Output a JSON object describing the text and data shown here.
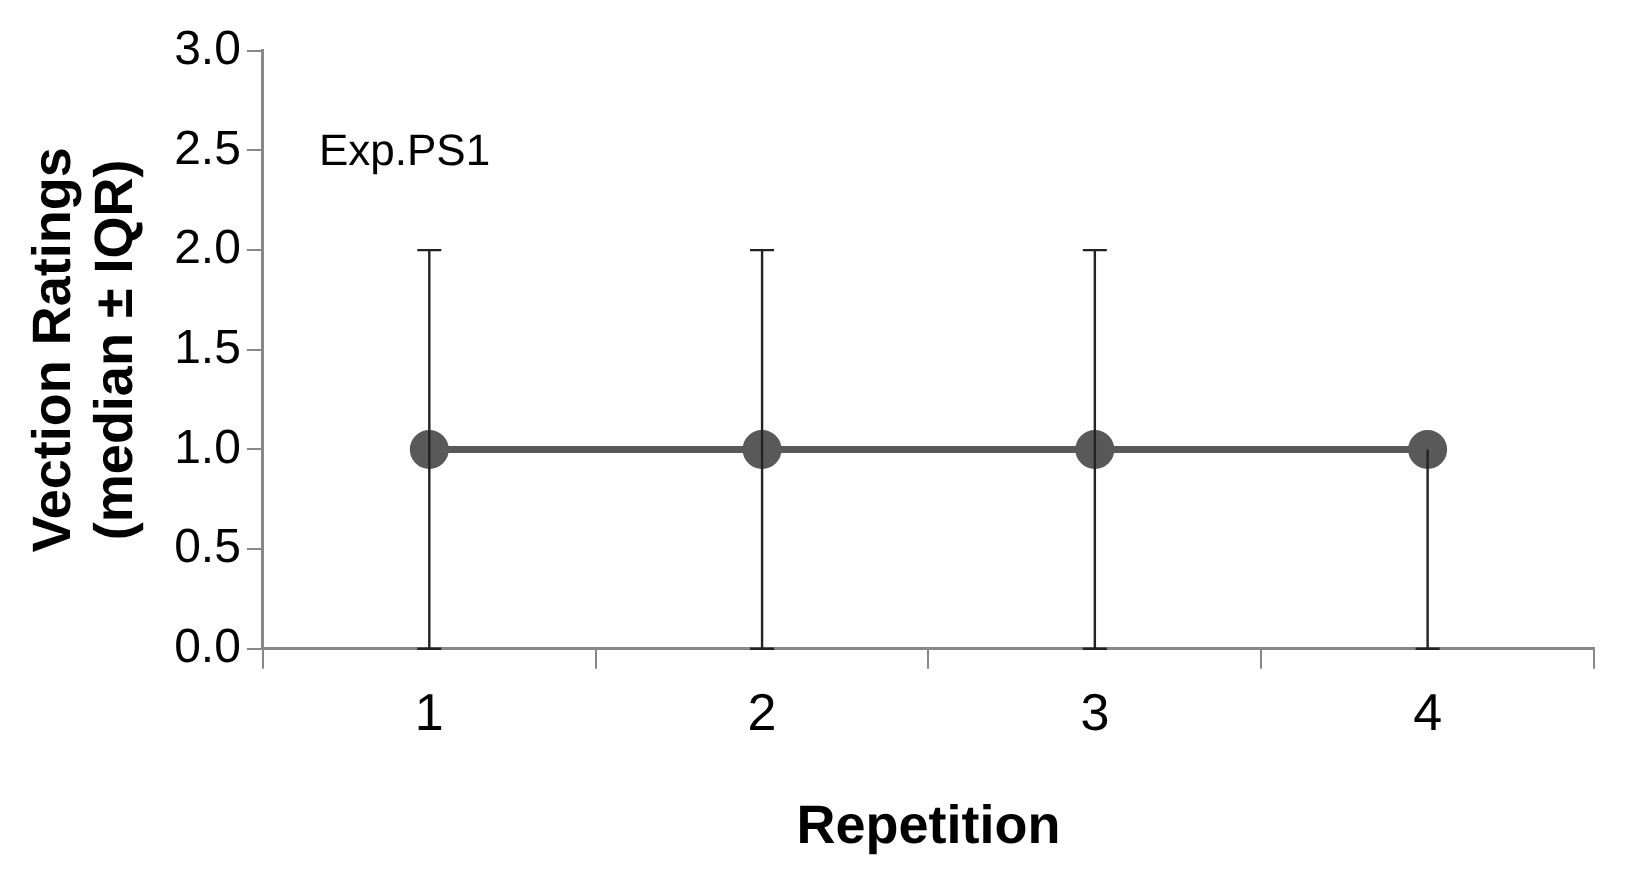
{
  "chart_data": {
    "type": "line",
    "xlabel": "Repetition",
    "ylabel": "Vection Ratings\n(median ± IQR)",
    "categories": [
      "1",
      "2",
      "3",
      "4"
    ],
    "series": [
      {
        "color": "#595959",
        "values": [
          1.0,
          1.0,
          1.0,
          1.0
        ],
        "errors": [
          [
            0,
            2
          ],
          [
            0,
            2
          ],
          [
            0,
            2
          ],
          [
            0,
            1
          ]
        ]
      }
    ],
    "ylim": [
      0,
      3
    ],
    "yticks": [
      {
        "value": 0,
        "label": "0.0"
      },
      {
        "value": 0.5,
        "label": "0.5"
      },
      {
        "value": 1,
        "label": "1.0"
      },
      {
        "value": 1.5,
        "label": "1.5"
      },
      {
        "value": 2,
        "label": "2.0"
      },
      {
        "value": 2.5,
        "label": "2.5"
      },
      {
        "value": 3,
        "label": "3.0"
      }
    ],
    "annotations": [
      "Exp.PS1"
    ],
    "grid": false,
    "legend": false,
    "marker": "circle",
    "line_style": "solid"
  }
}
